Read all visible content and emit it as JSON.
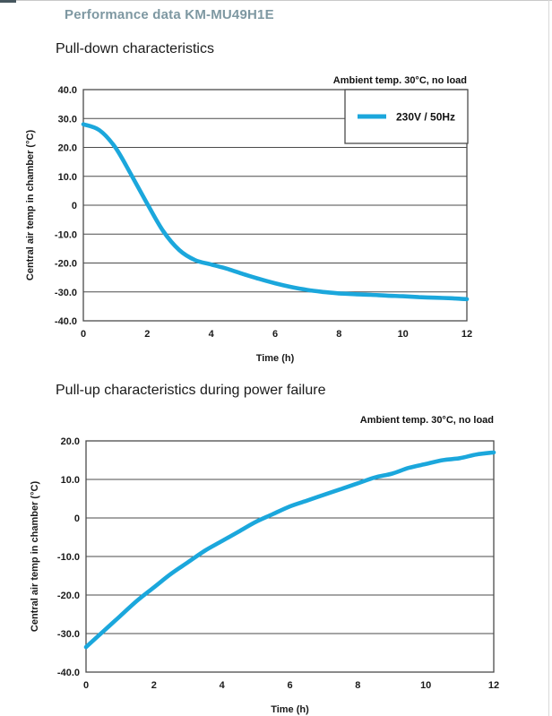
{
  "page": {
    "header_title": "Performance data KM-MU49H1E"
  },
  "colors": {
    "accent": "#1BA7DC",
    "header_text": "#7E98A2",
    "grid": "#4B4B4B",
    "text": "#1A1A1A"
  },
  "chart_data": [
    {
      "type": "line",
      "title": "Pull-down characteristics",
      "annotation": "Ambient temp. 30°C, no load",
      "xlabel": "Time (h)",
      "ylabel": "Central air temp in chamber (°C)",
      "xlim": [
        0,
        12
      ],
      "ylim": [
        -40,
        40
      ],
      "grid": true,
      "legend_position": "top-right",
      "xticks": {
        "values": [
          0,
          2,
          4,
          6,
          8,
          10,
          12
        ],
        "labels": [
          "0",
          "2",
          "4",
          "6",
          "8",
          "10",
          "12"
        ]
      },
      "yticks": {
        "values": [
          40,
          30,
          20,
          10,
          0,
          -10,
          -20,
          -30,
          -40
        ],
        "labels": [
          "40.0",
          "30.0",
          "20.0",
          "10.0",
          "0",
          "-10.0",
          "-20.0",
          "-30.0",
          "-40.0"
        ]
      },
      "legend": {
        "entries": [
          {
            "label": "230V / 50Hz",
            "color": "#1BA7DC"
          }
        ]
      },
      "series": [
        {
          "name": "230V / 50Hz",
          "color": "#1BA7DC",
          "x": [
            0,
            0.5,
            1,
            1.5,
            2,
            2.5,
            3,
            3.5,
            4,
            4.5,
            5,
            5.5,
            6,
            6.5,
            7,
            7.5,
            8,
            8.5,
            9,
            9.5,
            10,
            10.5,
            11,
            11.5,
            12
          ],
          "y": [
            28,
            26,
            20,
            10.5,
            0.5,
            -9,
            -15.5,
            -19,
            -20.5,
            -22,
            -23.8,
            -25.5,
            -27,
            -28.3,
            -29.3,
            -30,
            -30.5,
            -30.8,
            -31,
            -31.3,
            -31.5,
            -31.8,
            -32,
            -32.2,
            -32.5
          ]
        }
      ]
    },
    {
      "type": "line",
      "title": "Pull-up characteristics during power failure",
      "annotation": "Ambient temp. 30°C, no load",
      "xlabel": "Time (h)",
      "ylabel": "Central air temp in chamber (°C)",
      "xlim": [
        0,
        12
      ],
      "ylim": [
        -40,
        20
      ],
      "grid": true,
      "legend": null,
      "xticks": {
        "values": [
          0,
          2,
          4,
          6,
          8,
          10,
          12
        ],
        "labels": [
          "0",
          "2",
          "4",
          "6",
          "8",
          "10",
          "12"
        ]
      },
      "yticks": {
        "values": [
          20,
          10,
          0,
          -10,
          -20,
          -30,
          -40
        ],
        "labels": [
          "20.0",
          "10.0",
          "0",
          "-10.0",
          "-20.0",
          "-30.0",
          "-40.0"
        ]
      },
      "series": [
        {
          "name": "230V / 50Hz",
          "color": "#1BA7DC",
          "x": [
            0,
            0.5,
            1,
            1.5,
            2,
            2.5,
            3,
            3.5,
            4,
            4.5,
            5,
            5.5,
            6,
            6.5,
            7,
            7.5,
            8,
            8.5,
            9,
            9.5,
            10,
            10.5,
            11,
            11.5,
            12
          ],
          "y": [
            -33.5,
            -29.5,
            -25.5,
            -21.5,
            -18,
            -14.5,
            -11.5,
            -8.5,
            -6,
            -3.5,
            -1,
            1,
            3,
            4.5,
            6,
            7.5,
            9,
            10.5,
            11.5,
            13,
            14,
            15,
            15.5,
            16.5,
            17
          ]
        }
      ]
    }
  ]
}
